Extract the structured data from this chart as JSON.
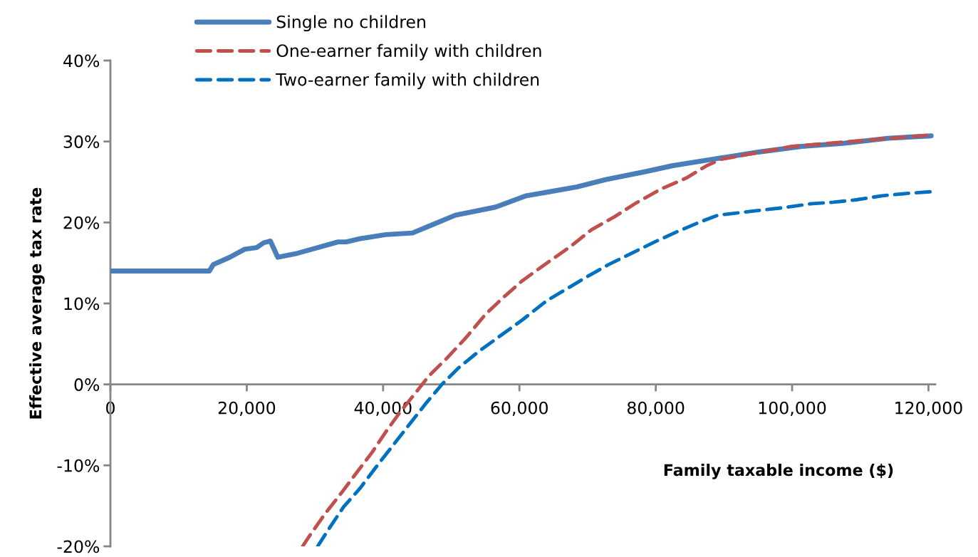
{
  "chart_data": {
    "type": "line",
    "xlabel": "Family taxable income ($)",
    "ylabel": "Effective average tax rate",
    "xlim": [
      0,
      121000
    ],
    "xticks": [
      0,
      {
        "value": 20000,
        "label": "20,000"
      },
      {
        "value": 40000,
        "label": "40,000"
      },
      {
        "value": 60000,
        "label": "60,000"
      },
      {
        "value": 80000,
        "label": "80,000"
      },
      {
        "value": 100000,
        "label": "100,000"
      },
      {
        "value": 120000,
        "label": "120,000"
      }
    ],
    "ylim": [
      -20,
      40
    ],
    "yticks": [
      {
        "value": -20,
        "label": "-20%"
      },
      {
        "value": -10,
        "label": "-10%"
      },
      {
        "value": 0,
        "label": "0%"
      },
      {
        "value": 10,
        "label": "10%"
      },
      {
        "value": 20,
        "label": "20%"
      },
      {
        "value": 30,
        "label": "30%"
      },
      {
        "value": 40,
        "label": "40%"
      }
    ],
    "grid": false,
    "legend": "top",
    "marker": "none",
    "series": [
      {
        "name": "Single no children",
        "color": "#4a7ebb",
        "line_style": "solid",
        "x": [
          0,
          14500,
          15100,
          17500,
          19700,
          21450,
          22500,
          23470,
          24560,
          27460,
          33400,
          34600,
          36600,
          40400,
          44300,
          46600,
          50600,
          56500,
          61000,
          63800,
          68450,
          72670,
          78590,
          82390,
          88300,
          95060,
          101400,
          107730,
          114060,
          120400
        ],
        "values": [
          14.0,
          14.0,
          14.8,
          15.7,
          16.7,
          16.9,
          17.5,
          17.7,
          15.7,
          16.2,
          17.6,
          17.6,
          18.0,
          18.5,
          18.7,
          19.5,
          20.9,
          21.9,
          23.3,
          23.7,
          24.4,
          25.3,
          26.3,
          27.0,
          27.8,
          28.7,
          29.4,
          29.8,
          30.4,
          30.7
        ]
      },
      {
        "name": "One-earner family with children",
        "color": "#c0504d",
        "line_style": "dashed",
        "x": [
          28200,
          29050,
          31470,
          33890,
          36300,
          38380,
          40450,
          42520,
          45280,
          46670,
          49430,
          52190,
          54960,
          57460,
          60420,
          64220,
          67600,
          70560,
          73940,
          76900,
          80700,
          84500,
          87450,
          89570,
          100000,
          110000,
          120400
        ],
        "values": [
          -20.0,
          -18.9,
          -16.0,
          -13.4,
          -10.7,
          -8.4,
          -5.8,
          -3.4,
          -0.5,
          1.0,
          3.3,
          5.8,
          8.6,
          10.6,
          12.8,
          15.1,
          17.1,
          19.1,
          20.7,
          22.3,
          24.1,
          25.5,
          27.0,
          27.8,
          29.4,
          30.1,
          30.8
        ]
      },
      {
        "name": "Two-earner family with children",
        "color": "#0070c0",
        "line_style": "dashed",
        "x": [
          30400,
          32160,
          34230,
          36650,
          39070,
          41480,
          43900,
          46320,
          48740,
          51150,
          53920,
          57030,
          60480,
          63940,
          66340,
          69710,
          73090,
          76470,
          79850,
          83230,
          86610,
          89140,
          94210,
          98440,
          102660,
          106040,
          109420,
          113220,
          117020,
          120400
        ],
        "values": [
          -20.0,
          -17.7,
          -15.1,
          -12.8,
          -10.1,
          -7.5,
          -4.9,
          -2.3,
          0.1,
          2.1,
          4.0,
          5.9,
          8.0,
          10.3,
          11.5,
          13.2,
          14.8,
          16.2,
          17.6,
          18.9,
          20.1,
          20.9,
          21.4,
          21.8,
          22.3,
          22.5,
          22.8,
          23.3,
          23.6,
          23.8
        ]
      }
    ]
  }
}
